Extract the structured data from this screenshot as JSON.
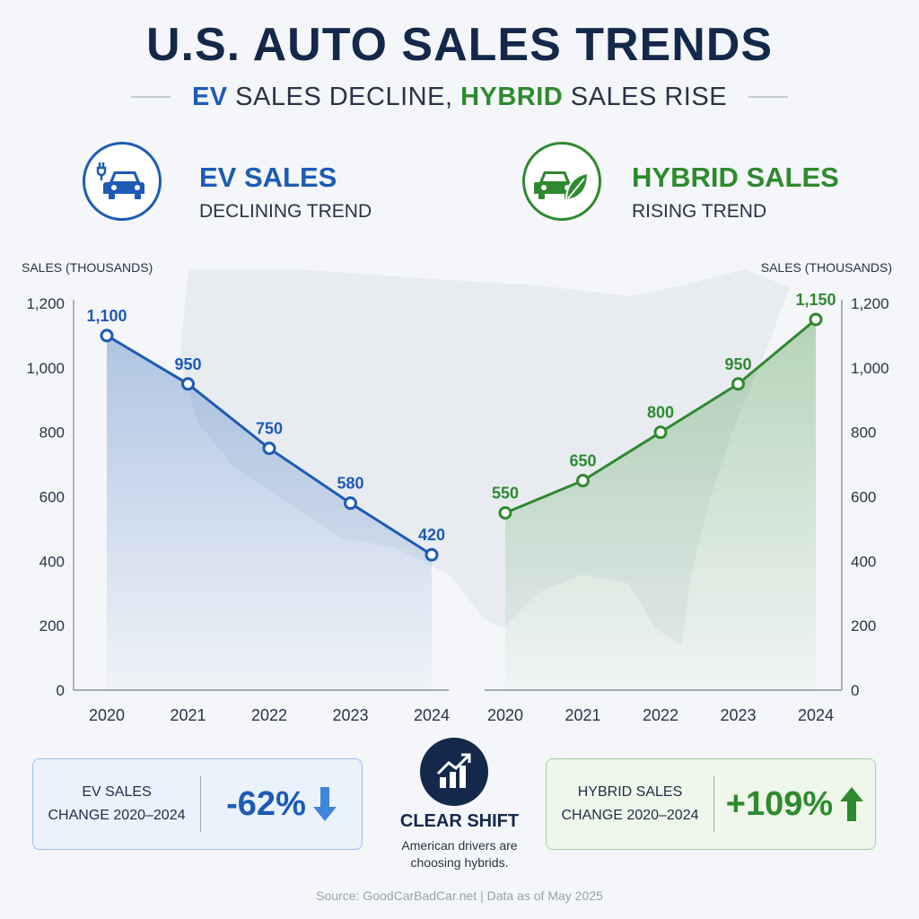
{
  "title": "U.S. AUTO SALES TRENDS",
  "subtitle": {
    "ev_word": "EV",
    "ev_rest": " SALES DECLINE, ",
    "hybrid_word": "HYBRID",
    "hybrid_rest": " SALES RISE"
  },
  "ev_header": {
    "title": "EV SALES",
    "subtitle": "DECLINING TREND"
  },
  "hybrid_header": {
    "title": "HYBRID SALES",
    "subtitle": "RISING TREND"
  },
  "icons": {
    "ev": "electric-car-icon",
    "hybrid": "car-leaf-icon",
    "shift": "rising-bar-chart-icon",
    "ev_change": "arrow-down-icon",
    "hybrid_change": "arrow-up-icon"
  },
  "colors": {
    "ev": "#1d5bb5",
    "hybrid": "#2e8a2e",
    "title": "#14284b"
  },
  "chart_data": [
    {
      "type": "line",
      "title": "EV SALES",
      "ylabel": "SALES (THOUSANDS)",
      "xlabel": "",
      "x": [
        "2020",
        "2021",
        "2022",
        "2023",
        "2024"
      ],
      "series": [
        {
          "name": "EV SALES",
          "values": [
            1100,
            950,
            750,
            580,
            420
          ],
          "color": "#1d5bb5"
        }
      ],
      "data_labels": [
        "1,100",
        "950",
        "750",
        "580",
        "420"
      ],
      "ylim": [
        0,
        1200
      ],
      "yticks": [
        0,
        200,
        400,
        600,
        800,
        1000,
        1200
      ],
      "ytick_labels": [
        "0",
        "200",
        "400",
        "600",
        "800",
        "1,000",
        "1,200"
      ],
      "y_axis_side": "left",
      "area_fill": true,
      "grid": false
    },
    {
      "type": "line",
      "title": "HYBRID SALES",
      "ylabel": "SALES (THOUSANDS)",
      "xlabel": "",
      "x": [
        "2020",
        "2021",
        "2022",
        "2023",
        "2024"
      ],
      "series": [
        {
          "name": "HYBRID SALES",
          "values": [
            550,
            650,
            800,
            950,
            1150
          ],
          "color": "#2e8a2e"
        }
      ],
      "data_labels": [
        "550",
        "650",
        "800",
        "950",
        "1,150"
      ],
      "ylim": [
        0,
        1200
      ],
      "yticks": [
        0,
        200,
        400,
        600,
        800,
        1000,
        1200
      ],
      "ytick_labels": [
        "0",
        "200",
        "400",
        "600",
        "800",
        "1,000",
        "1,200"
      ],
      "y_axis_side": "right",
      "area_fill": true,
      "grid": false
    }
  ],
  "ev_change": {
    "line1": "EV SALES",
    "line2": "CHANGE 2020–2024",
    "value": "-62%"
  },
  "hybrid_change": {
    "line1": "HYBRID SALES",
    "line2": "CHANGE 2020–2024",
    "value": "+109%"
  },
  "shift": {
    "title": "CLEAR SHIFT",
    "line1": "American drivers are",
    "line2": "choosing hybrids."
  },
  "source": "Source: GoodCarBadCar.net | Data as of May 2025"
}
